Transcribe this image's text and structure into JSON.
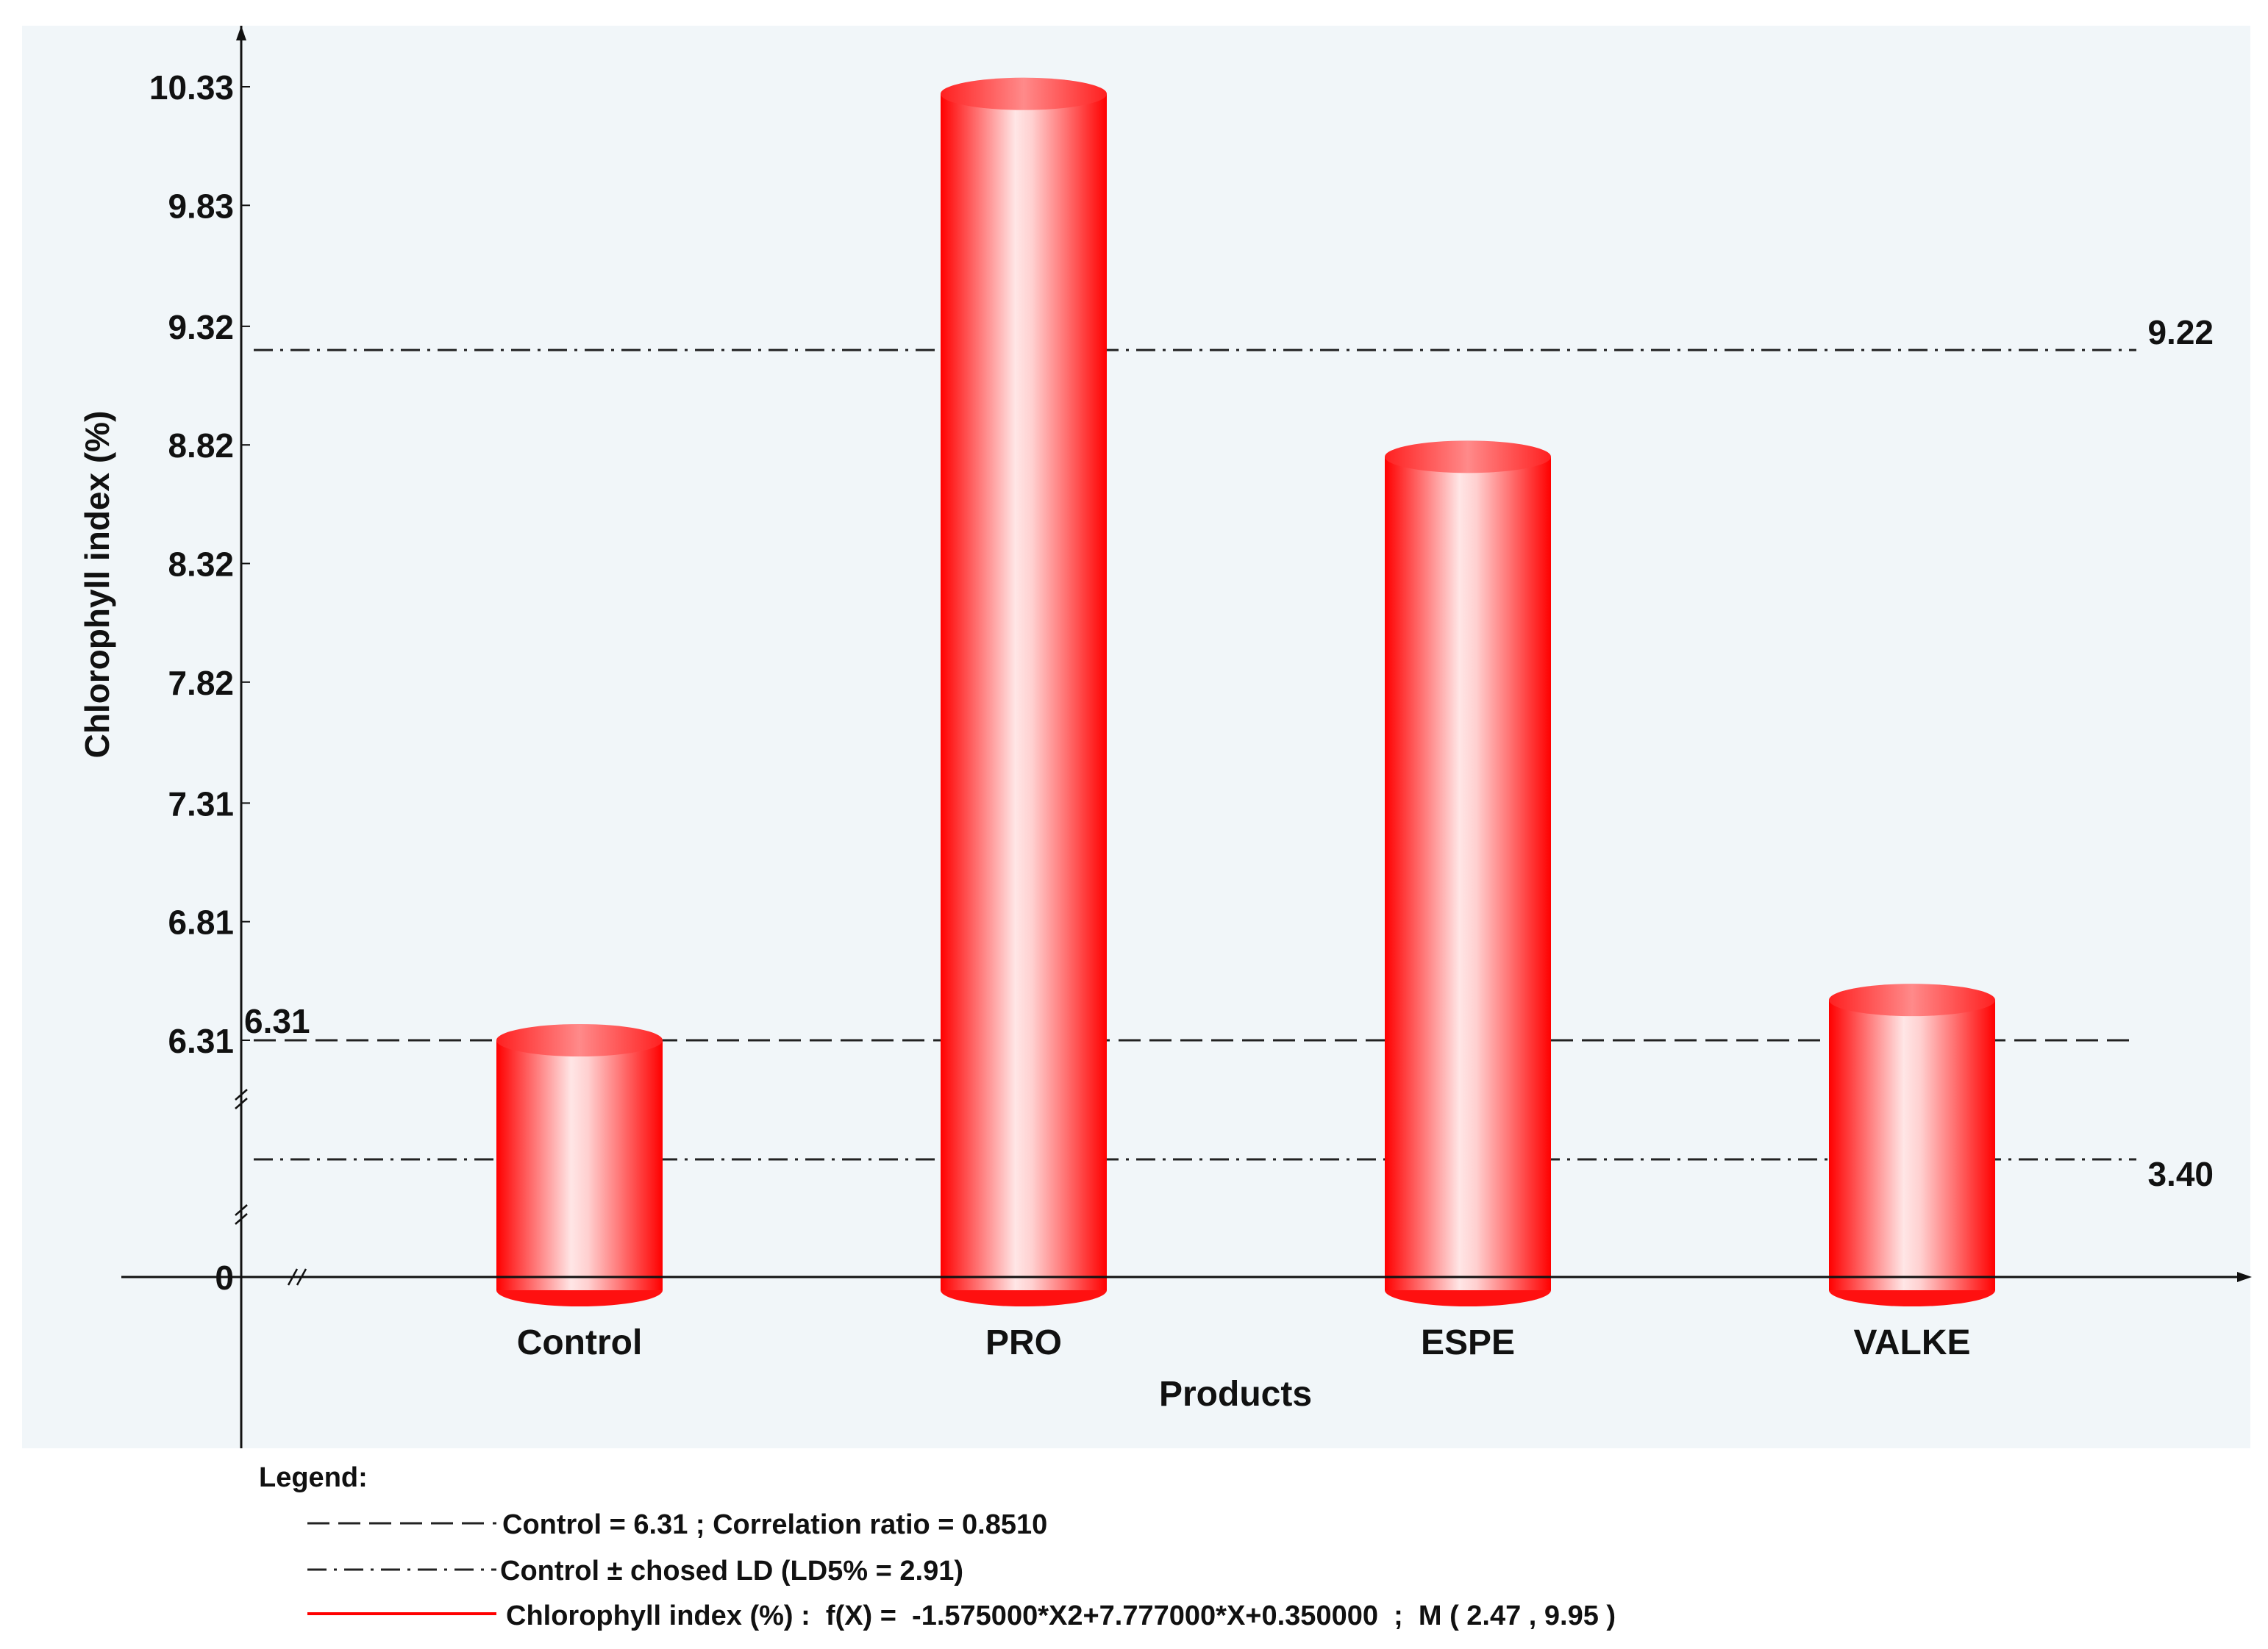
{
  "chart_data": {
    "type": "bar",
    "ylabel": "Chlorophyll index (%)",
    "xlabel": "Products",
    "categories": [
      "Control",
      "PRO",
      "ESPE",
      "VALKE"
    ],
    "values": [
      6.31,
      10.3,
      8.77,
      6.48
    ],
    "y_ticks": [
      "0",
      "6.31",
      "6.81",
      "7.31",
      "7.82",
      "8.32",
      "8.82",
      "9.32",
      "9.83",
      "10.33"
    ],
    "ylim": [
      6.31,
      10.33
    ],
    "axis_break": "between 0 and 6.31",
    "bar_color": "#ff1a1a",
    "reference_lines": [
      {
        "value": 6.31,
        "label": "6.31",
        "style": "dashed"
      },
      {
        "value": 9.22,
        "label": "9.22",
        "style": "dash-dot"
      },
      {
        "value": 3.4,
        "label": "3.40",
        "style": "dash-dot"
      }
    ],
    "grid": false,
    "legend_placement": "bottom"
  },
  "legend": {
    "title": "Legend:",
    "items": [
      {
        "style": "dashed",
        "text": "Control = 6.31 ; Correlation ratio = 0.8510"
      },
      {
        "style": "dash-dot",
        "text": "Control ± chosed LD (LD5% = 2.91)"
      },
      {
        "style": "solid-red",
        "text": "Chlorophyll index (%) :  f(X) =  -1.575000*X2+7.777000*X+0.350000  ;  M ( 2.47 , 9.95 )"
      }
    ]
  }
}
